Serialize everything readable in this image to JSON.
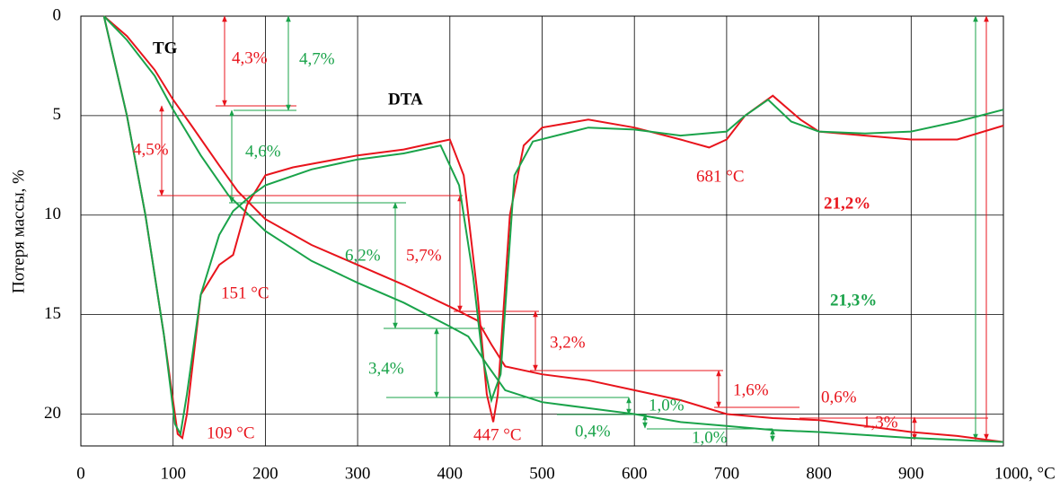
{
  "chart_data": {
    "type": "line",
    "y_label": "Потеря массы, %",
    "xlim": [
      0,
      1000
    ],
    "ylim": [
      0,
      21.6
    ],
    "y_inverted": true,
    "grid": true,
    "xticks": [
      0,
      100,
      200,
      300,
      400,
      500,
      600,
      700,
      800,
      900,
      {
        "value": 1000,
        "label": "1000, °C"
      }
    ],
    "yticks": [
      0,
      5,
      10,
      15,
      20
    ],
    "series": [
      {
        "name": "TG",
        "color": "#e8141c",
        "x": [
          25,
          50,
          80,
          100,
          120,
          150,
          170,
          200,
          250,
          300,
          350,
          400,
          430,
          445,
          460,
          500,
          550,
          600,
          650,
          700,
          750,
          800,
          850,
          900,
          950,
          1000
        ],
        "values": [
          0,
          1,
          2.7,
          4.2,
          5.5,
          7.5,
          8.8,
          10.2,
          11.5,
          12.5,
          13.5,
          14.6,
          15.3,
          16.5,
          17.6,
          18.0,
          18.3,
          18.8,
          19.3,
          20.0,
          20.2,
          20.3,
          20.6,
          20.9,
          21.1,
          21.4
        ]
      },
      {
        "name": "TG",
        "color": "#1aa34a",
        "x": [
          25,
          50,
          80,
          100,
          130,
          160,
          200,
          250,
          300,
          350,
          400,
          420,
          440,
          460,
          500,
          550,
          600,
          650,
          700,
          750,
          800,
          900,
          1000
        ],
        "values": [
          0,
          1.2,
          3.0,
          4.7,
          7,
          9,
          10.8,
          12.3,
          13.4,
          14.4,
          15.6,
          16.1,
          17.5,
          18.8,
          19.4,
          19.7,
          20.0,
          20.4,
          20.6,
          20.8,
          20.9,
          21.2,
          21.4
        ]
      },
      {
        "name": "DTA",
        "color": "#e8141c",
        "x": [
          25,
          50,
          70,
          90,
          105,
          110,
          115,
          130,
          150,
          165,
          180,
          200,
          230,
          300,
          350,
          380,
          400,
          415,
          430,
          440,
          447,
          452,
          465,
          480,
          500,
          550,
          600,
          650,
          681,
          700,
          720,
          750,
          780,
          800,
          850,
          900,
          950,
          1000
        ],
        "values": [
          0,
          5,
          10,
          16,
          21,
          21.2,
          20,
          14,
          12.5,
          12,
          9.5,
          8,
          7.6,
          7,
          6.7,
          6.4,
          6.2,
          8,
          14,
          19,
          20.4,
          19,
          10,
          6.5,
          5.6,
          5.2,
          5.6,
          6.2,
          6.6,
          6.2,
          5,
          4.0,
          5.2,
          5.8,
          6,
          6.2,
          6.2,
          5.5
        ]
      },
      {
        "name": "DTA",
        "color": "#1aa34a",
        "x": [
          25,
          50,
          70,
          90,
          102,
          108,
          115,
          130,
          150,
          165,
          185,
          200,
          250,
          300,
          350,
          390,
          410,
          425,
          435,
          445,
          455,
          470,
          490,
          550,
          600,
          650,
          700,
          720,
          745,
          770,
          800,
          850,
          900,
          950,
          1000
        ],
        "values": [
          0,
          5,
          10,
          16,
          20.5,
          21,
          19,
          14,
          11,
          9.8,
          9,
          8.5,
          7.7,
          7.2,
          6.9,
          6.5,
          8.5,
          13,
          17,
          19.3,
          18,
          8,
          6.3,
          5.6,
          5.7,
          6,
          5.8,
          5,
          4.2,
          5.3,
          5.8,
          5.9,
          5.8,
          5.3,
          4.7
        ]
      }
    ],
    "annotations": [
      "TG",
      "DTA",
      "4,3%",
      "4,7%",
      "4,5%",
      "4,6%",
      "151 °C",
      "109 °C",
      "6,2%",
      "5,7%",
      "3,2%",
      "3,4%",
      "447 °C",
      "1,0%",
      "0,4%",
      "1,0%",
      "1,6%",
      "0,6%",
      "1,3%",
      "681 °C",
      "21,2%",
      "21,3%"
    ]
  }
}
